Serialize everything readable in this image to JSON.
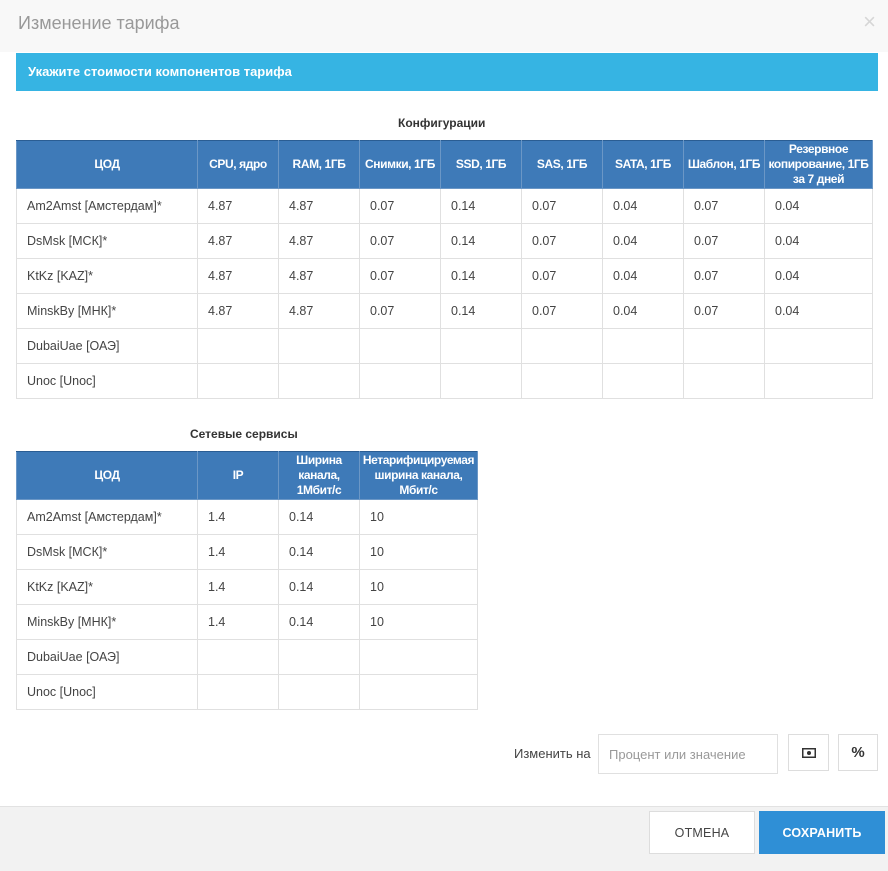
{
  "dialog": {
    "title": "Изменение тарифа",
    "close_glyph": "×",
    "info": "Укажите стоимости компонентов тарифа"
  },
  "configs": {
    "title": "Конфигурации",
    "headers": [
      "ЦОД",
      "CPU, ядро",
      "RAM, 1ГБ",
      "Снимки, 1ГБ",
      "SSD, 1ГБ",
      "SAS, 1ГБ",
      "SATA, 1ГБ",
      "Шаблон, 1ГБ",
      "Резервное копирование, 1ГБ за 7 дней"
    ],
    "rows": [
      [
        "Am2Amst [Амстердам]*",
        "4.87",
        "4.87",
        "0.07",
        "0.14",
        "0.07",
        "0.04",
        "0.07",
        "0.04"
      ],
      [
        "DsMsk [МСК]*",
        "4.87",
        "4.87",
        "0.07",
        "0.14",
        "0.07",
        "0.04",
        "0.07",
        "0.04"
      ],
      [
        "KtKz [KAZ]*",
        "4.87",
        "4.87",
        "0.07",
        "0.14",
        "0.07",
        "0.04",
        "0.07",
        "0.04"
      ],
      [
        "MinskBy [МНК]*",
        "4.87",
        "4.87",
        "0.07",
        "0.14",
        "0.07",
        "0.04",
        "0.07",
        "0.04"
      ],
      [
        "DubaiUae [ОАЭ]",
        "",
        "",
        "",
        "",
        "",
        "",
        "",
        ""
      ],
      [
        "Unoc [Unoc]",
        "",
        "",
        "",
        "",
        "",
        "",
        "",
        ""
      ]
    ]
  },
  "network": {
    "title": "Сетевые сервисы",
    "headers": [
      "ЦОД",
      "IP",
      "Ширина канала, 1Мбит/с",
      "Нетарифицируемая ширина канала, Мбит/с"
    ],
    "rows": [
      [
        "Am2Amst [Амстердам]*",
        "1.4",
        "0.14",
        "10"
      ],
      [
        "DsMsk [МСК]*",
        "1.4",
        "0.14",
        "10"
      ],
      [
        "KtKz [KAZ]*",
        "1.4",
        "0.14",
        "10"
      ],
      [
        "MinskBy [МНК]*",
        "1.4",
        "0.14",
        "10"
      ],
      [
        "DubaiUae [ОАЭ]",
        "",
        "",
        ""
      ],
      [
        "Unoc [Unoc]",
        "",
        "",
        ""
      ]
    ]
  },
  "change": {
    "label": "Изменить на",
    "placeholder": "Процент или значение",
    "money_icon": "money-icon",
    "percent_glyph": "%"
  },
  "footer": {
    "cancel": "ОТМЕНА",
    "save": "СОХРАНИТЬ"
  },
  "colors": {
    "info_bar": "#36b4e3",
    "table_header": "#3e7ab8",
    "save_button": "#2f8fd6"
  }
}
